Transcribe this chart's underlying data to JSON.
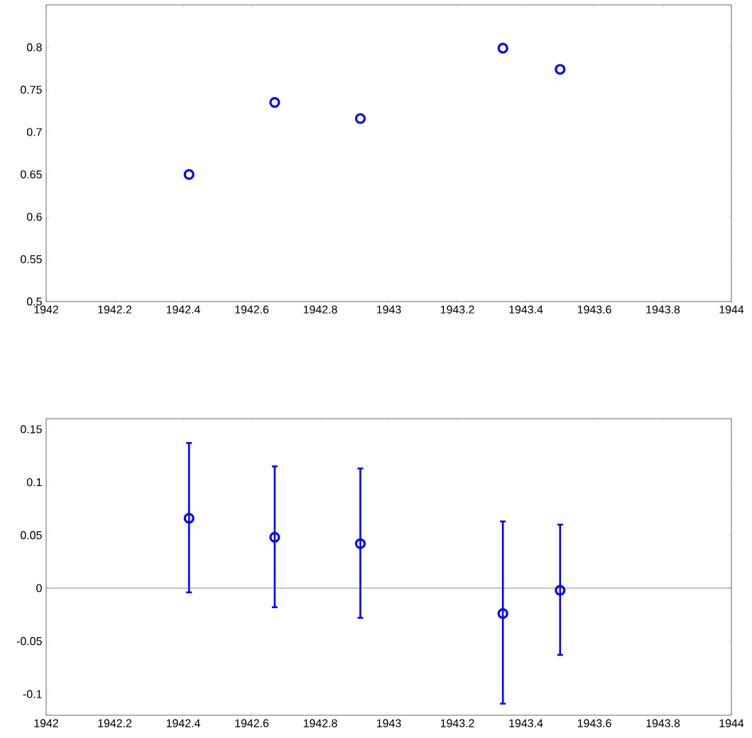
{
  "chart_data": [
    {
      "type": "scatter",
      "x": [
        1942.417,
        1942.667,
        1942.917,
        1943.333,
        1943.5
      ],
      "series": [
        {
          "color": "#0000ff",
          "values": [
            0.65,
            0.735,
            0.716,
            0.799,
            0.774
          ]
        }
      ],
      "xlim": [
        1942,
        1944
      ],
      "xticks": [
        1942,
        1942.2,
        1942.4,
        1942.6,
        1942.8,
        1943,
        1943.2,
        1943.4,
        1943.6,
        1943.8,
        1944
      ],
      "ylim": [
        0.5,
        0.85
      ],
      "yticks": [
        0.5,
        0.55,
        0.6,
        0.65,
        0.7,
        0.75,
        0.8
      ],
      "marker": "circle",
      "grid": false
    },
    {
      "type": "scatter",
      "x": [
        1942.417,
        1942.667,
        1942.917,
        1943.333,
        1943.5
      ],
      "series": [
        {
          "color": "#0000ff",
          "values": [
            0.066,
            0.048,
            0.042,
            -0.024,
            -0.002
          ],
          "errors": [
            [
              -0.004,
              0.137
            ],
            [
              -0.018,
              0.115
            ],
            [
              -0.028,
              0.113
            ],
            [
              -0.109,
              0.063
            ],
            [
              -0.063,
              0.06
            ]
          ]
        }
      ],
      "xlim": [
        1942,
        1944
      ],
      "xticks": [
        1942,
        1942.2,
        1942.4,
        1942.6,
        1942.8,
        1943,
        1943.2,
        1943.4,
        1943.6,
        1943.8,
        1944
      ],
      "ylim": [
        -0.12,
        0.16
      ],
      "yticks": [
        -0.1,
        -0.05,
        0,
        0.05,
        0.1,
        0.15
      ],
      "marker": "circle",
      "grid": false,
      "ref_lines": [
        {
          "axis": "y",
          "value": 0
        }
      ]
    }
  ]
}
